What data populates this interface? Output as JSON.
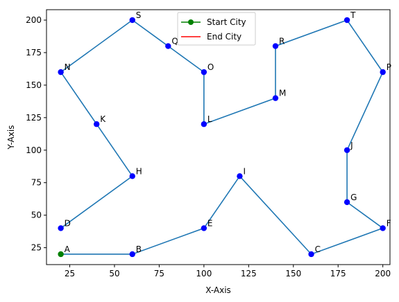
{
  "chart_data": {
    "type": "line",
    "xlabel": "X-Axis",
    "ylabel": "Y-Axis",
    "xlim": [
      12,
      204
    ],
    "ylim": [
      12,
      208
    ],
    "xticks": [
      25,
      50,
      75,
      100,
      125,
      150,
      175,
      200
    ],
    "yticks": [
      25,
      50,
      75,
      100,
      125,
      150,
      175,
      200
    ],
    "grid": false,
    "legend_position": "top-center",
    "legend": [
      {
        "label": "Start City",
        "color": "#008000",
        "marker": "circle"
      },
      {
        "label": "End City",
        "color": "#ff0000",
        "marker": "none"
      }
    ],
    "route_color": "#1f77b4",
    "city_color": "#0000ff",
    "start_color": "#008000",
    "cities": [
      {
        "name": "A",
        "x": 20,
        "y": 20
      },
      {
        "name": "B",
        "x": 60,
        "y": 20
      },
      {
        "name": "C",
        "x": 160,
        "y": 20
      },
      {
        "name": "D",
        "x": 20,
        "y": 40
      },
      {
        "name": "E",
        "x": 100,
        "y": 40
      },
      {
        "name": "F",
        "x": 200,
        "y": 40
      },
      {
        "name": "G",
        "x": 180,
        "y": 60
      },
      {
        "name": "H",
        "x": 60,
        "y": 80
      },
      {
        "name": "I",
        "x": 120,
        "y": 80
      },
      {
        "name": "J",
        "x": 180,
        "y": 100
      },
      {
        "name": "K",
        "x": 40,
        "y": 120
      },
      {
        "name": "L",
        "x": 100,
        "y": 120
      },
      {
        "name": "M",
        "x": 140,
        "y": 140
      },
      {
        "name": "N",
        "x": 20,
        "y": 160
      },
      {
        "name": "O",
        "x": 100,
        "y": 160
      },
      {
        "name": "P",
        "x": 200,
        "y": 160
      },
      {
        "name": "Q",
        "x": 80,
        "y": 180
      },
      {
        "name": "R",
        "x": 140,
        "y": 180
      },
      {
        "name": "S",
        "x": 60,
        "y": 200
      },
      {
        "name": "T",
        "x": 180,
        "y": 200
      }
    ],
    "route": [
      "A",
      "B",
      "E",
      "I",
      "C",
      "F",
      "G",
      "J",
      "P",
      "T",
      "R",
      "M",
      "L",
      "O",
      "Q",
      "S",
      "N",
      "K",
      "H",
      "D"
    ],
    "start_city": "A"
  }
}
